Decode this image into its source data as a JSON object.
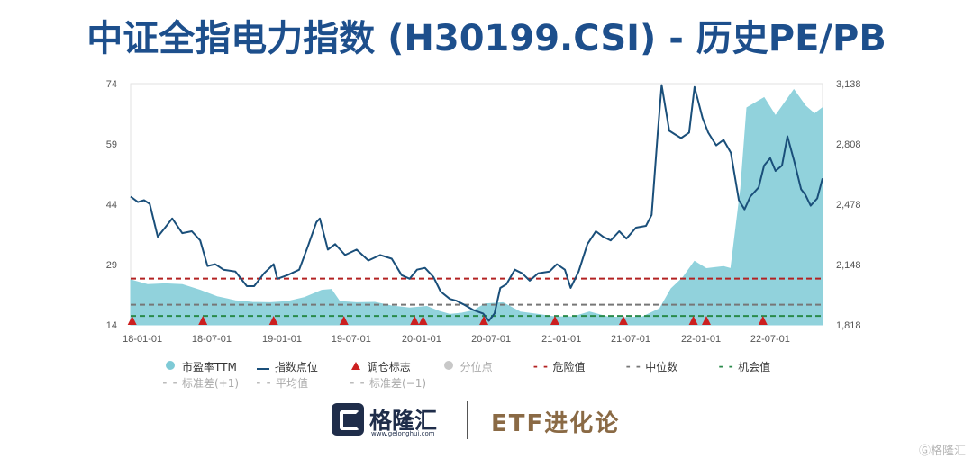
{
  "title": "中证全指电力指数 (H30199.CSI) - 历史PE/PB",
  "chart_data": {
    "type": "area",
    "x_ticks": [
      "18-01-01",
      "18-07-01",
      "19-01-01",
      "19-07-01",
      "20-01-01",
      "20-07-01",
      "21-01-01",
      "21-07-01",
      "22-01-01",
      "22-07-01"
    ],
    "x_start": "2017-12-01",
    "x_end": "2022-11-15",
    "y_left": {
      "ticks": [
        14,
        29,
        44,
        59,
        74
      ],
      "range": [
        14,
        74
      ]
    },
    "y_right": {
      "ticks": [
        "1,818",
        "2,148",
        "2,478",
        "2,808",
        "3,138"
      ],
      "range": [
        1818,
        3138
      ]
    },
    "reference_lines": {
      "danger": 25.5,
      "median": 19.0,
      "opportunity": 16.2
    },
    "series": [
      {
        "name": "市盈率TTM",
        "axis": "left",
        "color": "#7ecad6",
        "points": [
          [
            "2017-12-01",
            25.2
          ],
          [
            "2018-01-15",
            24.0
          ],
          [
            "2018-03-01",
            24.2
          ],
          [
            "2018-04-15",
            24.0
          ],
          [
            "2018-06-01",
            22.6
          ],
          [
            "2018-07-15",
            21.0
          ],
          [
            "2018-09-01",
            20.0
          ],
          [
            "2018-10-15",
            19.6
          ],
          [
            "2018-12-01",
            19.5
          ],
          [
            "2019-01-15",
            19.8
          ],
          [
            "2019-03-01",
            20.8
          ],
          [
            "2019-04-15",
            22.6
          ],
          [
            "2019-05-10",
            22.8
          ],
          [
            "2019-06-01",
            19.8
          ],
          [
            "2019-07-15",
            19.5
          ],
          [
            "2019-09-01",
            19.6
          ],
          [
            "2019-10-15",
            18.7
          ],
          [
            "2019-12-01",
            18.2
          ],
          [
            "2020-01-15",
            18.6
          ],
          [
            "2020-02-15",
            17.4
          ],
          [
            "2020-03-15",
            16.6
          ],
          [
            "2020-04-15",
            16.9
          ],
          [
            "2020-05-15",
            17.5
          ],
          [
            "2020-06-15",
            19.2
          ],
          [
            "2020-08-01",
            19.5
          ],
          [
            "2020-09-15",
            17.2
          ],
          [
            "2020-11-01",
            16.6
          ],
          [
            "2020-12-15",
            16.0
          ],
          [
            "2021-02-01",
            16.0
          ],
          [
            "2021-03-15",
            17.2
          ],
          [
            "2021-05-01",
            16.0
          ],
          [
            "2021-06-15",
            15.8
          ],
          [
            "2021-08-01",
            16.0
          ],
          [
            "2021-09-15",
            18.0
          ],
          [
            "2021-10-15",
            23.0
          ],
          [
            "2021-11-15",
            25.8
          ],
          [
            "2021-12-15",
            29.8
          ],
          [
            "2022-01-15",
            28.0
          ],
          [
            "2022-03-01",
            28.5
          ],
          [
            "2022-03-20",
            28.0
          ],
          [
            "2022-04-15",
            48.0
          ],
          [
            "2022-05-01",
            68.0
          ],
          [
            "2022-06-15",
            70.5
          ],
          [
            "2022-07-15",
            66.0
          ],
          [
            "2022-09-01",
            72.5
          ],
          [
            "2022-10-01",
            68.5
          ],
          [
            "2022-10-25",
            66.5
          ],
          [
            "2022-11-15",
            68.0
          ]
        ]
      },
      {
        "name": "指数点位",
        "axis": "right",
        "color": "#1a4f7a",
        "points": [
          [
            "2017-12-01",
            2520
          ],
          [
            "2017-12-20",
            2490
          ],
          [
            "2018-01-05",
            2500
          ],
          [
            "2018-01-20",
            2480
          ],
          [
            "2018-02-10",
            2300
          ],
          [
            "2018-03-01",
            2350
          ],
          [
            "2018-03-20",
            2400
          ],
          [
            "2018-04-15",
            2320
          ],
          [
            "2018-05-10",
            2330
          ],
          [
            "2018-06-01",
            2280
          ],
          [
            "2018-06-20",
            2140
          ],
          [
            "2018-07-10",
            2150
          ],
          [
            "2018-08-01",
            2120
          ],
          [
            "2018-09-01",
            2110
          ],
          [
            "2018-10-01",
            2030
          ],
          [
            "2018-10-20",
            2030
          ],
          [
            "2018-11-15",
            2100
          ],
          [
            "2018-12-10",
            2150
          ],
          [
            "2018-12-20",
            2070
          ],
          [
            "2019-01-15",
            2090
          ],
          [
            "2019-02-15",
            2120
          ],
          [
            "2019-03-10",
            2250
          ],
          [
            "2019-04-01",
            2380
          ],
          [
            "2019-04-10",
            2400
          ],
          [
            "2019-05-01",
            2230
          ],
          [
            "2019-05-20",
            2260
          ],
          [
            "2019-06-15",
            2200
          ],
          [
            "2019-07-15",
            2230
          ],
          [
            "2019-08-15",
            2170
          ],
          [
            "2019-09-15",
            2200
          ],
          [
            "2019-10-15",
            2180
          ],
          [
            "2019-11-10",
            2090
          ],
          [
            "2019-12-01",
            2070
          ],
          [
            "2019-12-20",
            2120
          ],
          [
            "2020-01-10",
            2130
          ],
          [
            "2020-02-01",
            2080
          ],
          [
            "2020-02-20",
            2000
          ],
          [
            "2020-03-15",
            1960
          ],
          [
            "2020-04-01",
            1950
          ],
          [
            "2020-04-20",
            1930
          ],
          [
            "2020-05-15",
            1900
          ],
          [
            "2020-06-10",
            1880
          ],
          [
            "2020-06-25",
            1840
          ],
          [
            "2020-07-10",
            1880
          ],
          [
            "2020-07-25",
            2020
          ],
          [
            "2020-08-10",
            2040
          ],
          [
            "2020-09-01",
            2120
          ],
          [
            "2020-09-20",
            2100
          ],
          [
            "2020-10-10",
            2060
          ],
          [
            "2020-11-01",
            2100
          ],
          [
            "2020-12-01",
            2110
          ],
          [
            "2020-12-20",
            2150
          ],
          [
            "2021-01-10",
            2120
          ],
          [
            "2021-01-25",
            2020
          ],
          [
            "2021-02-15",
            2110
          ],
          [
            "2021-03-10",
            2260
          ],
          [
            "2021-04-01",
            2330
          ],
          [
            "2021-04-20",
            2300
          ],
          [
            "2021-05-10",
            2280
          ],
          [
            "2021-06-01",
            2330
          ],
          [
            "2021-06-20",
            2290
          ],
          [
            "2021-07-15",
            2350
          ],
          [
            "2021-08-10",
            2360
          ],
          [
            "2021-08-25",
            2420
          ],
          [
            "2021-09-10",
            2870
          ],
          [
            "2021-09-20",
            3130
          ],
          [
            "2021-10-10",
            2880
          ],
          [
            "2021-10-25",
            2860
          ],
          [
            "2021-11-10",
            2840
          ],
          [
            "2021-12-01",
            2870
          ],
          [
            "2021-12-15",
            3120
          ],
          [
            "2022-01-05",
            2950
          ],
          [
            "2022-01-20",
            2870
          ],
          [
            "2022-02-10",
            2800
          ],
          [
            "2022-03-01",
            2830
          ],
          [
            "2022-03-20",
            2760
          ],
          [
            "2022-04-10",
            2500
          ],
          [
            "2022-04-25",
            2450
          ],
          [
            "2022-05-10",
            2520
          ],
          [
            "2022-06-01",
            2570
          ],
          [
            "2022-06-15",
            2690
          ],
          [
            "2022-07-01",
            2730
          ],
          [
            "2022-07-15",
            2660
          ],
          [
            "2022-08-01",
            2690
          ],
          [
            "2022-08-15",
            2850
          ],
          [
            "2022-09-01",
            2720
          ],
          [
            "2022-09-20",
            2560
          ],
          [
            "2022-10-01",
            2530
          ],
          [
            "2022-10-15",
            2470
          ],
          [
            "2022-11-01",
            2510
          ],
          [
            "2022-11-15",
            2620
          ]
        ]
      }
    ],
    "rebalance_markers": [
      "2017-12-05",
      "2018-06-08",
      "2018-12-10",
      "2019-06-12",
      "2019-12-14",
      "2020-01-05",
      "2020-06-12",
      "2020-12-15",
      "2021-06-12",
      "2021-12-12",
      "2022-01-15",
      "2022-06-12"
    ],
    "legend": {
      "row1": [
        {
          "label": "市盈率TTM",
          "symbol": "dot",
          "color": "#7ecad6"
        },
        {
          "label": "指数点位",
          "symbol": "line",
          "color": "#1a4f7a"
        },
        {
          "label": "调仓标志",
          "symbol": "triangle",
          "color": "#cc1f1f"
        },
        {
          "label": "分位点",
          "symbol": "dot",
          "color": "#c8c8c8",
          "muted": true
        },
        {
          "label": "危险值",
          "symbol": "dash",
          "color": "#b32222"
        },
        {
          "label": "中位数",
          "symbol": "dash",
          "color": "#777777"
        },
        {
          "label": "机会值",
          "symbol": "dash",
          "color": "#2a8a4a"
        }
      ],
      "row2": [
        {
          "label": "标准差(+1)",
          "symbol": "dash",
          "color": "#bbbbbb",
          "muted": true
        },
        {
          "label": "平均值",
          "symbol": "dash",
          "color": "#bbbbbb",
          "muted": true
        },
        {
          "label": "标准差(−1)",
          "symbol": "dash",
          "color": "#bbbbbb",
          "muted": true
        }
      ]
    }
  },
  "footer": {
    "logo_text": "格隆汇",
    "logo_url": "www.gelonghui.com",
    "etf_text": "ETF进化论",
    "watermark": "Ⓖ格隆汇"
  }
}
